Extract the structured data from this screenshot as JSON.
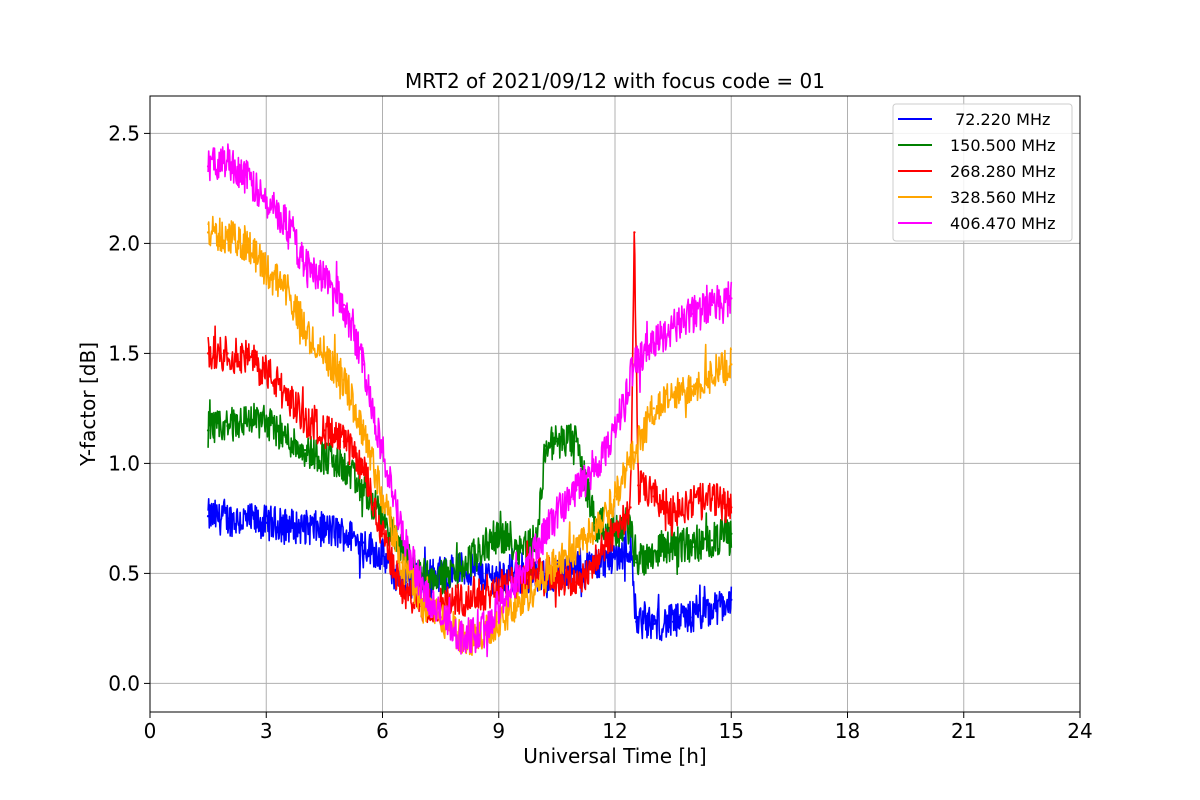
{
  "chart_data": {
    "type": "line",
    "title": "MRT2 of 2021/09/12 with focus code = 01",
    "xlabel": "Universal Time [h]",
    "ylabel": "Y-factor [dB]",
    "xlim": [
      0,
      24
    ],
    "ylim": [
      -0.13,
      2.67
    ],
    "xticks": [
      0,
      3,
      6,
      9,
      12,
      15,
      18,
      21,
      24
    ],
    "yticks": [
      0.0,
      0.5,
      1.0,
      1.5,
      2.0,
      2.5
    ],
    "xtick_labels": [
      "0",
      "3",
      "6",
      "9",
      "12",
      "15",
      "18",
      "21",
      "24"
    ],
    "ytick_labels": [
      "0.0",
      "0.5",
      "1.0",
      "1.5",
      "2.0",
      "2.5"
    ],
    "grid": true,
    "legend_position": "top-right",
    "series": [
      {
        "name": " 72.220 MHz",
        "color": "#0000ff",
        "x": [
          1.5,
          2,
          2.5,
          3,
          3.5,
          4,
          4.5,
          5,
          5.5,
          6,
          6.3,
          6.6,
          7,
          7.5,
          8,
          8.5,
          9,
          9.5,
          10,
          10.5,
          11,
          11.5,
          12,
          12.4,
          12.55,
          13,
          13.5,
          14,
          14.5,
          15
        ],
        "y": [
          0.76,
          0.75,
          0.74,
          0.73,
          0.72,
          0.71,
          0.7,
          0.68,
          0.64,
          0.58,
          0.5,
          0.46,
          0.48,
          0.5,
          0.52,
          0.5,
          0.48,
          0.47,
          0.48,
          0.5,
          0.52,
          0.54,
          0.58,
          0.62,
          0.28,
          0.27,
          0.28,
          0.3,
          0.33,
          0.38
        ]
      },
      {
        "name": "150.500 MHz",
        "color": "#008000",
        "x": [
          1.5,
          2,
          2.5,
          3,
          3.5,
          4,
          4.5,
          5,
          5.5,
          6,
          6.5,
          7,
          7.5,
          8,
          8.5,
          9,
          9.5,
          10,
          10.2,
          10.5,
          11,
          11.5,
          12,
          12.4,
          12.55,
          13,
          13.5,
          14,
          14.5,
          15
        ],
        "y": [
          1.15,
          1.17,
          1.2,
          1.19,
          1.12,
          1.06,
          1.03,
          0.98,
          0.88,
          0.75,
          0.6,
          0.5,
          0.48,
          0.52,
          0.6,
          0.68,
          0.62,
          0.65,
          1.08,
          1.1,
          1.1,
          0.72,
          0.7,
          0.7,
          0.55,
          0.6,
          0.64,
          0.62,
          0.65,
          0.68
        ]
      },
      {
        "name": "268.280 MHz",
        "color": "#ff0000",
        "x": [
          1.5,
          2,
          2.5,
          3,
          3.5,
          4,
          4.5,
          5,
          5.5,
          6,
          6.5,
          7,
          7.5,
          8,
          8.5,
          9,
          9.5,
          10,
          10.5,
          11,
          11.5,
          12,
          12.4,
          12.5,
          12.6,
          13,
          13.5,
          14,
          14.5,
          15
        ],
        "y": [
          1.5,
          1.5,
          1.48,
          1.42,
          1.32,
          1.2,
          1.15,
          1.1,
          0.98,
          0.68,
          0.42,
          0.35,
          0.36,
          0.38,
          0.4,
          0.44,
          0.46,
          0.52,
          0.48,
          0.46,
          0.55,
          0.7,
          0.8,
          2.05,
          0.9,
          0.85,
          0.78,
          0.82,
          0.84,
          0.8
        ]
      },
      {
        "name": "328.560 MHz",
        "color": "#ffa500",
        "x": [
          1.5,
          2,
          2.5,
          3,
          3.5,
          4,
          4.5,
          5,
          5.5,
          6,
          6.5,
          7,
          7.5,
          8,
          8.5,
          9,
          9.5,
          10,
          10.5,
          11,
          11.5,
          12,
          12.5,
          13,
          13.5,
          14,
          14.5,
          15
        ],
        "y": [
          2.05,
          2.03,
          2.0,
          1.88,
          1.8,
          1.6,
          1.5,
          1.38,
          1.15,
          0.85,
          0.55,
          0.38,
          0.3,
          0.22,
          0.2,
          0.28,
          0.35,
          0.45,
          0.55,
          0.62,
          0.72,
          0.85,
          1.05,
          1.25,
          1.3,
          1.35,
          1.4,
          1.45
        ]
      },
      {
        "name": "406.470 MHz",
        "color": "#ff00ff",
        "x": [
          1.5,
          2,
          2.5,
          3,
          3.5,
          4,
          4.5,
          5,
          5.5,
          6,
          6.5,
          7,
          7.5,
          8,
          8.5,
          9,
          9.5,
          10,
          10.5,
          11,
          11.5,
          12,
          12.5,
          13,
          13.5,
          14,
          14.5,
          15
        ],
        "y": [
          2.35,
          2.38,
          2.3,
          2.18,
          2.1,
          1.9,
          1.85,
          1.72,
          1.45,
          1.05,
          0.68,
          0.45,
          0.3,
          0.22,
          0.22,
          0.35,
          0.48,
          0.62,
          0.78,
          0.88,
          0.98,
          1.15,
          1.45,
          1.55,
          1.62,
          1.68,
          1.72,
          1.75
        ]
      }
    ]
  }
}
